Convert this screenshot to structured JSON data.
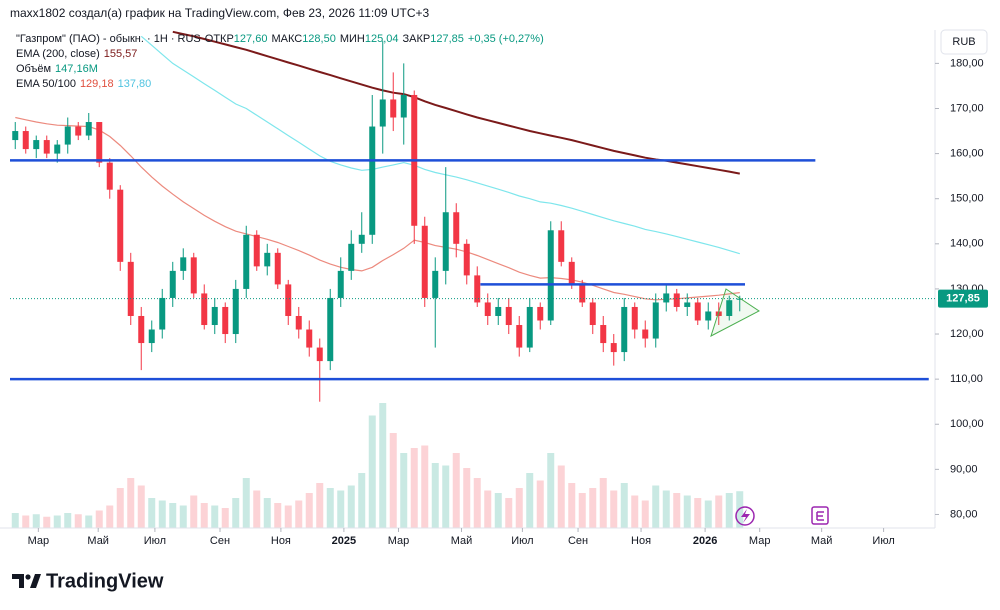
{
  "header": "maxx1802 создал(а) график на TradingView.com, Фев 23, 2026 11:09 UTC+3",
  "logo": "TradingView",
  "currency": "RUB",
  "legend": {
    "symbol": "\"Газпром\" (ПАО) - обыкн. · 1Н · RUS",
    "ohlc": [
      {
        "name": "ОТКР",
        "value_label": "127,60"
      },
      {
        "name": "МАКС",
        "value_label": "128,50"
      },
      {
        "name": "МИН",
        "value_label": "125,04"
      },
      {
        "name": "ЗАКР",
        "value_label": "127,85"
      }
    ],
    "change": "+0,35 (+0,27%)",
    "indicators": [
      {
        "name": "EMA (200, close)",
        "values": [
          "155,57"
        ]
      },
      {
        "name": "Объём",
        "values": [
          "147,16M"
        ]
      },
      {
        "name": "EMA 50/100",
        "values": [
          "129,18",
          "137,80"
        ]
      }
    ]
  },
  "chart_data": {
    "type": "candlestick",
    "open": [
      163,
      165,
      161,
      163,
      160,
      162,
      166,
      164,
      167,
      158,
      152,
      136,
      124,
      118,
      121,
      128,
      134,
      137,
      129,
      122,
      126,
      120,
      130,
      142,
      135,
      138,
      131,
      124,
      121,
      117,
      114,
      128,
      134,
      140,
      142,
      166,
      172,
      168,
      173,
      144,
      128,
      134,
      147,
      140,
      133,
      127,
      124,
      126,
      122,
      117,
      126,
      123,
      143,
      136,
      131,
      127,
      122,
      118,
      116,
      126,
      121,
      119,
      127,
      129,
      126,
      127,
      123,
      125,
      124,
      127.6
    ],
    "high": [
      167,
      166,
      164,
      164,
      163,
      168,
      167,
      169,
      167,
      159,
      153,
      138,
      126,
      123,
      130,
      136,
      139,
      138,
      131,
      128,
      127,
      132,
      144,
      143,
      140,
      139,
      132,
      126,
      123,
      119,
      130,
      137,
      143,
      147,
      173,
      185,
      178,
      180,
      174,
      146,
      137,
      157,
      149,
      141,
      135,
      129,
      128,
      128,
      124,
      128,
      127,
      145,
      145,
      137,
      132,
      128,
      124,
      120,
      128,
      127,
      123,
      129,
      131,
      130,
      129,
      128,
      127,
      127,
      128.5,
      128.5
    ],
    "low": [
      161,
      160,
      159,
      159,
      158,
      160,
      163,
      163,
      157,
      150,
      134,
      122,
      112,
      116,
      119,
      126,
      132,
      128,
      121,
      120,
      118,
      118,
      128,
      134,
      133,
      130,
      122,
      119,
      115,
      105,
      112,
      126,
      132,
      138,
      140,
      160,
      165,
      162,
      140,
      126,
      117,
      131,
      137,
      131,
      126,
      122,
      122,
      120,
      115,
      116,
      121,
      122,
      135,
      130,
      126,
      120,
      116,
      113,
      114,
      119,
      117,
      117,
      125,
      125,
      124,
      122,
      121,
      122,
      123,
      125.04
    ],
    "close": [
      165,
      161,
      163,
      160,
      162,
      166,
      164,
      167,
      158,
      152,
      136,
      124,
      118,
      121,
      128,
      134,
      137,
      129,
      122,
      126,
      120,
      130,
      142,
      135,
      138,
      131,
      124,
      121,
      117,
      114,
      128,
      134,
      140,
      142,
      166,
      172,
      168,
      173,
      144,
      128,
      134,
      147,
      140,
      133,
      127,
      124,
      126,
      122,
      117,
      126,
      123,
      143,
      136,
      131,
      127,
      122,
      118,
      116,
      126,
      121,
      119,
      127,
      129,
      126,
      127,
      123,
      125,
      124,
      127.5,
      127.85
    ],
    "volume": [
      60,
      50,
      55,
      45,
      50,
      60,
      55,
      50,
      70,
      90,
      160,
      200,
      170,
      120,
      110,
      100,
      90,
      130,
      100,
      90,
      80,
      120,
      200,
      150,
      120,
      100,
      90,
      110,
      140,
      180,
      160,
      150,
      170,
      220,
      450,
      500,
      380,
      300,
      320,
      330,
      260,
      250,
      300,
      240,
      200,
      150,
      140,
      120,
      160,
      220,
      190,
      300,
      250,
      180,
      140,
      160,
      200,
      150,
      180,
      130,
      110,
      170,
      150,
      140,
      130,
      120,
      110,
      130,
      140,
      147.16
    ],
    "ema": [
      {
        "name": "EMA 200",
        "color": "#7b1a1a",
        "values": [
          null,
          null,
          null,
          null,
          null,
          null,
          null,
          null,
          null,
          null,
          null,
          null,
          null,
          null,
          null,
          187,
          186.5,
          186,
          185.4,
          184.8,
          184.2,
          183.6,
          183,
          182.3,
          181.6,
          180.9,
          180.2,
          179.5,
          178.8,
          178.1,
          177.4,
          176.7,
          176,
          175.3,
          174.6,
          174,
          173.5,
          173.2,
          172.5,
          171.6,
          170.8,
          170.1,
          169.4,
          168.7,
          168,
          167.4,
          166.8,
          166.2,
          165.6,
          165,
          164.5,
          164,
          163.5,
          163,
          162.4,
          161.8,
          161.2,
          160.6,
          160.1,
          159.6,
          159.1,
          158.7,
          158.4,
          158,
          157.6,
          157.2,
          156.8,
          156.4,
          156,
          155.57
        ]
      },
      {
        "name": "EMA 100",
        "color": "#7ee6ec",
        "values": [
          null,
          null,
          null,
          null,
          null,
          null,
          null,
          null,
          null,
          null,
          null,
          null,
          186,
          184,
          182,
          180,
          178.5,
          177,
          175.5,
          174,
          172.5,
          171,
          170,
          168.5,
          167,
          165.5,
          164,
          162.5,
          161,
          159.5,
          158.3,
          157.5,
          156.8,
          156.3,
          156.5,
          157,
          157.5,
          158,
          157.4,
          156.5,
          155.8,
          155.3,
          154.8,
          154.2,
          153.5,
          152.8,
          152.1,
          151.4,
          150.6,
          150,
          149.3,
          149,
          148.5,
          147.9,
          147.2,
          146.5,
          145.8,
          145.1,
          144.5,
          143.9,
          143.2,
          142.7,
          142.2,
          141.6,
          141,
          140.4,
          139.8,
          139.2,
          138.5,
          137.8
        ]
      },
      {
        "name": "EMA 50",
        "color": "#ec8a7e",
        "values": [
          168,
          167.5,
          167,
          166.6,
          166.3,
          166.2,
          166.1,
          166,
          165.2,
          163.8,
          161.8,
          159.5,
          157,
          154.8,
          152.8,
          151,
          149.3,
          147.8,
          146.3,
          145,
          143.8,
          142.8,
          142.2,
          141.6,
          141,
          140.3,
          139.4,
          138.5,
          137.5,
          136.4,
          135.5,
          134.8,
          134.3,
          134,
          134.8,
          136.3,
          137.6,
          139,
          140.8,
          140.3,
          139.6,
          139.2,
          138.8,
          138.2,
          137.4,
          136.5,
          135.6,
          134.7,
          133.7,
          133,
          132.4,
          132.5,
          132.3,
          132,
          131.5,
          130.8,
          130,
          129.2,
          128.8,
          128.3,
          127.8,
          127.6,
          127.7,
          127.8,
          128,
          128.2,
          128.4,
          128.6,
          128.9,
          129.18
        ]
      }
    ],
    "levels": [
      {
        "value": 158.5,
        "from": -0.5,
        "to": 76.2
      },
      {
        "value": 110,
        "from": -0.5,
        "to": 87
      },
      {
        "value": 131,
        "from": 44.3,
        "to": 69.5
      }
    ],
    "last_price": {
      "value": 127.85,
      "label": "127,85"
    },
    "ylim": [
      77,
      187.4
    ],
    "yticks": [
      {
        "value": 80,
        "label": "80,00"
      },
      {
        "value": 90,
        "label": "90,00"
      },
      {
        "value": 100,
        "label": "100,00"
      },
      {
        "value": 110,
        "label": "110,00"
      },
      {
        "value": 120,
        "label": "120,00"
      },
      {
        "value": 130,
        "label": "130,00"
      },
      {
        "value": 140,
        "label": "140,00"
      },
      {
        "value": 150,
        "label": "150,00"
      },
      {
        "value": 160,
        "label": "160,00"
      },
      {
        "value": 170,
        "label": "170,00"
      },
      {
        "value": 180,
        "label": "180,00"
      }
    ],
    "xlim": [
      -0.5,
      87.5
    ],
    "xticks": [
      {
        "value": 2.2,
        "label": "Мар"
      },
      {
        "value": 7.9,
        "label": "Май"
      },
      {
        "value": 13.3,
        "label": "Июл"
      },
      {
        "value": 19.5,
        "label": "Сен"
      },
      {
        "value": 25.3,
        "label": "Ноя"
      },
      {
        "value": 31.3,
        "label": "2025"
      },
      {
        "value": 36.5,
        "label": "Мар"
      },
      {
        "value": 42.5,
        "label": "Май"
      },
      {
        "value": 48.3,
        "label": "Июл"
      },
      {
        "value": 53.6,
        "label": "Сен"
      },
      {
        "value": 59.6,
        "label": "Ноя"
      },
      {
        "value": 65.7,
        "label": "2026"
      },
      {
        "value": 70.9,
        "label": "Мар"
      },
      {
        "value": 76.8,
        "label": "Май"
      },
      {
        "value": 82.7,
        "label": "Июл"
      }
    ]
  }
}
